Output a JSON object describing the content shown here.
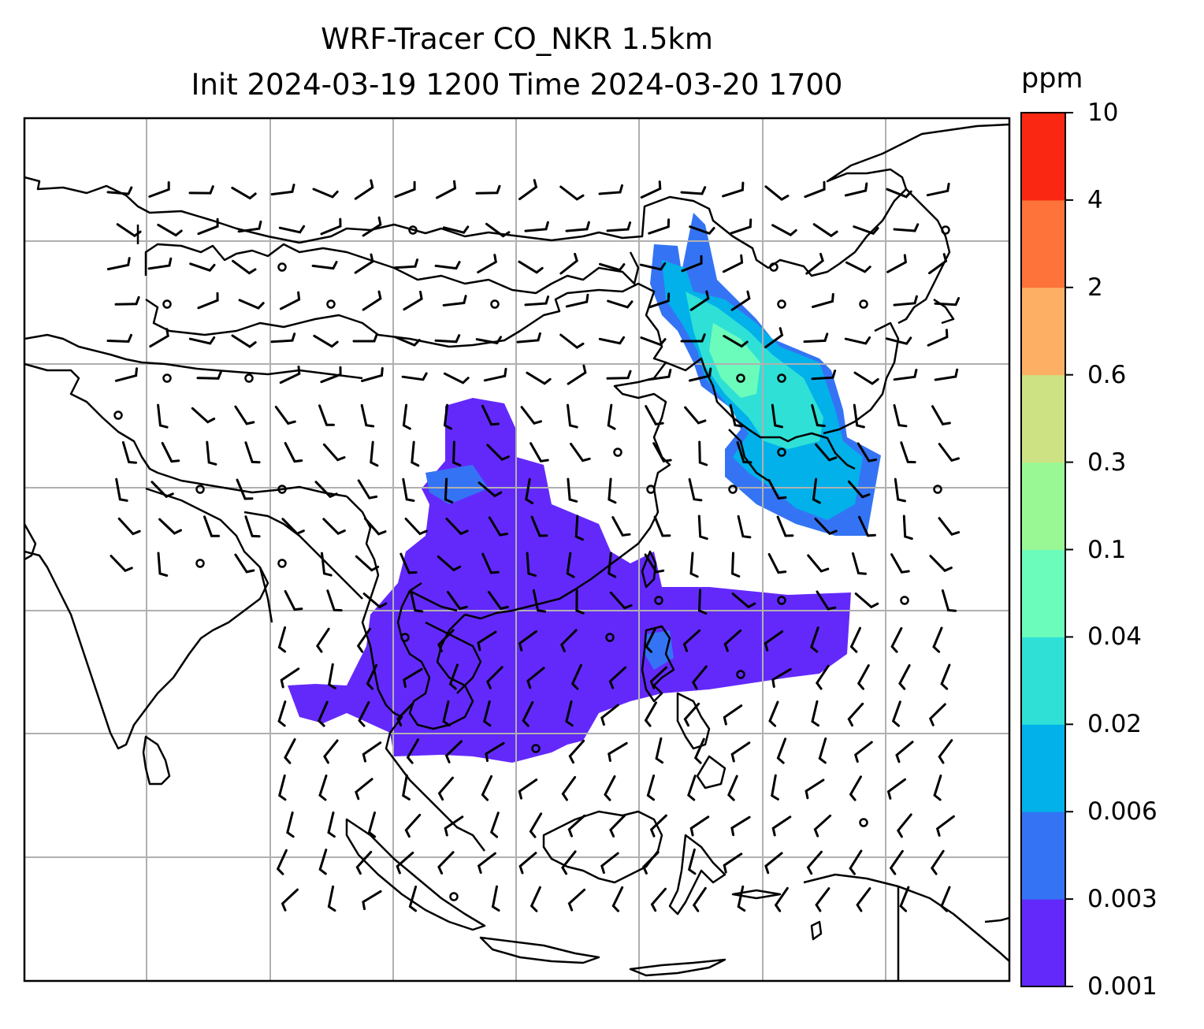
{
  "title": {
    "line1": "WRF-Tracer CO_NKR 1.5km",
    "line2": "Init 2024-03-19 1200 Time 2024-03-20 1700"
  },
  "colorbar": {
    "unit": "ppm",
    "levels": [
      "0.001",
      "0.003",
      "0.006",
      "0.02",
      "0.04",
      "0.1",
      "0.3",
      "0.6",
      "2",
      "4",
      "10"
    ],
    "colors": [
      "#6329fb",
      "#3474f4",
      "#02b1ea",
      "#2fe0d6",
      "#6bfcbc",
      "#9af894",
      "#cde383",
      "#fdb063",
      "#fd7339",
      "#fa2812"
    ]
  },
  "map": {
    "gridlines": true,
    "gridline_color": "#b0b0b0",
    "coastline_color": "#000000",
    "wind_barbs": true
  }
}
